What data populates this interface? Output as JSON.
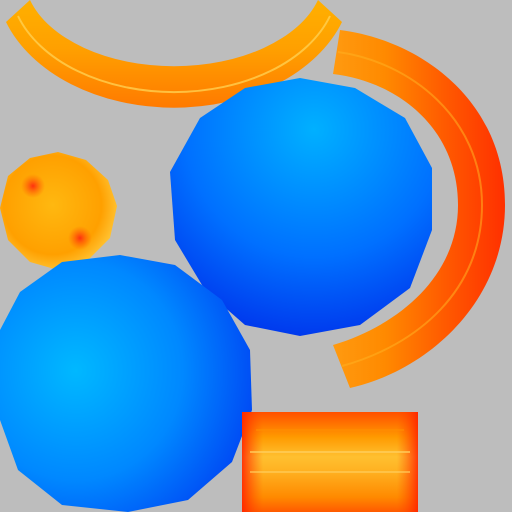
{
  "texture_atlas": {
    "background_color": "#bdbdbd",
    "pieces": [
      {
        "name": "orange-arc-top",
        "shape": "arc",
        "colors": [
          "#ffb000",
          "#ff9000",
          "#ff7a00"
        ]
      },
      {
        "name": "orange-arc-right",
        "shape": "arc",
        "colors": [
          "#ff2a00",
          "#ff7a00",
          "#ffab10"
        ]
      },
      {
        "name": "small-orange-ball",
        "shape": "polygon-circle",
        "colors": [
          "#ffd45a",
          "#ffa200",
          "#e04a10"
        ]
      },
      {
        "name": "blue-ball-large-top",
        "shape": "polygon-circle",
        "colors": [
          "#00aaff",
          "#0044ff",
          "#0022dd"
        ]
      },
      {
        "name": "blue-ball-large-bottom",
        "shape": "polygon-circle",
        "colors": [
          "#00c8ff",
          "#0078ff",
          "#0030f0"
        ]
      },
      {
        "name": "orange-tube-segment",
        "shape": "rectangle",
        "colors": [
          "#ff3000",
          "#ff9a00",
          "#ffc840"
        ]
      }
    ]
  }
}
